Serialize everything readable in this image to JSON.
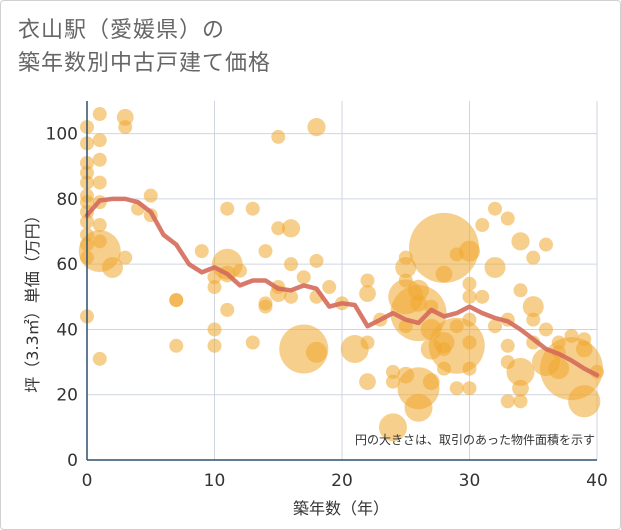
{
  "chart_data": {
    "type": "scatter",
    "title_line1": "衣山駅（愛媛県）の",
    "title_line2": "築年数別中古戸建て価格",
    "xlabel": "築年数（年）",
    "ylabel": "坪（3.3㎡）単価（万円）",
    "xlim": [
      0,
      40
    ],
    "ylim": [
      0,
      110
    ],
    "xticks": [
      0,
      10,
      20,
      30,
      40
    ],
    "yticks": [
      0,
      20,
      40,
      60,
      80,
      100
    ],
    "xtick_labels": [
      "0",
      "10",
      "20",
      "30",
      "40"
    ],
    "ytick_labels": [
      "0",
      "20",
      "40",
      "60",
      "80",
      "100"
    ],
    "note": "円の大きさは、取引のあった物件面積を示す",
    "colors": {
      "bubble": "#f0a830",
      "trend": "#d46a5a",
      "grid": "#cfd6e0",
      "axis": "#2f4f6f"
    },
    "scatter": [
      {
        "x": 0,
        "y": 102,
        "s": 1
      },
      {
        "x": 0,
        "y": 97,
        "s": 1
      },
      {
        "x": 0,
        "y": 91,
        "s": 1
      },
      {
        "x": 0,
        "y": 88,
        "s": 1
      },
      {
        "x": 0,
        "y": 85,
        "s": 1
      },
      {
        "x": 0,
        "y": 81,
        "s": 1
      },
      {
        "x": 0,
        "y": 79,
        "s": 1
      },
      {
        "x": 0,
        "y": 76,
        "s": 1
      },
      {
        "x": 0,
        "y": 73,
        "s": 1
      },
      {
        "x": 0,
        "y": 69,
        "s": 1
      },
      {
        "x": 0,
        "y": 66,
        "s": 1
      },
      {
        "x": 0,
        "y": 62,
        "s": 1
      },
      {
        "x": 0,
        "y": 44,
        "s": 1
      },
      {
        "x": 1,
        "y": 106,
        "s": 1
      },
      {
        "x": 1,
        "y": 98,
        "s": 1
      },
      {
        "x": 1,
        "y": 92,
        "s": 1
      },
      {
        "x": 1,
        "y": 85,
        "s": 1
      },
      {
        "x": 1,
        "y": 79,
        "s": 1
      },
      {
        "x": 1,
        "y": 72,
        "s": 1
      },
      {
        "x": 1,
        "y": 67,
        "s": 1
      },
      {
        "x": 1,
        "y": 64,
        "s": 3
      },
      {
        "x": 1,
        "y": 31,
        "s": 1
      },
      {
        "x": 2,
        "y": 59,
        "s": 1.5
      },
      {
        "x": 3,
        "y": 62,
        "s": 1
      },
      {
        "x": 3,
        "y": 102,
        "s": 1
      },
      {
        "x": 3,
        "y": 105,
        "s": 1.2
      },
      {
        "x": 4,
        "y": 77,
        "s": 1
      },
      {
        "x": 5,
        "y": 81,
        "s": 1
      },
      {
        "x": 5,
        "y": 75,
        "s": 1
      },
      {
        "x": 7,
        "y": 49,
        "s": 1
      },
      {
        "x": 7,
        "y": 49,
        "s": 1
      },
      {
        "x": 7,
        "y": 35,
        "s": 1
      },
      {
        "x": 9,
        "y": 64,
        "s": 1
      },
      {
        "x": 10,
        "y": 56,
        "s": 1
      },
      {
        "x": 10,
        "y": 53,
        "s": 1
      },
      {
        "x": 10,
        "y": 40,
        "s": 1
      },
      {
        "x": 10,
        "y": 35,
        "s": 1
      },
      {
        "x": 11,
        "y": 77,
        "s": 1
      },
      {
        "x": 11,
        "y": 60,
        "s": 2.2
      },
      {
        "x": 11,
        "y": 57,
        "s": 1.2
      },
      {
        "x": 11,
        "y": 46,
        "s": 1
      },
      {
        "x": 12,
        "y": 58,
        "s": 1
      },
      {
        "x": 13,
        "y": 77,
        "s": 1
      },
      {
        "x": 13,
        "y": 36,
        "s": 1
      },
      {
        "x": 14,
        "y": 64,
        "s": 1
      },
      {
        "x": 14,
        "y": 48,
        "s": 1
      },
      {
        "x": 14,
        "y": 47,
        "s": 1
      },
      {
        "x": 15,
        "y": 99,
        "s": 1
      },
      {
        "x": 15,
        "y": 71,
        "s": 1
      },
      {
        "x": 15,
        "y": 53,
        "s": 1
      },
      {
        "x": 15,
        "y": 51,
        "s": 1.2
      },
      {
        "x": 16,
        "y": 71,
        "s": 1.3
      },
      {
        "x": 16,
        "y": 60,
        "s": 1
      },
      {
        "x": 16,
        "y": 50,
        "s": 1
      },
      {
        "x": 17,
        "y": 56,
        "s": 1
      },
      {
        "x": 17,
        "y": 34,
        "s": 3.5
      },
      {
        "x": 18,
        "y": 102,
        "s": 1.3
      },
      {
        "x": 18,
        "y": 61,
        "s": 1
      },
      {
        "x": 18,
        "y": 50,
        "s": 1
      },
      {
        "x": 18,
        "y": 33,
        "s": 1.5
      },
      {
        "x": 19,
        "y": 53,
        "s": 1
      },
      {
        "x": 20,
        "y": 48,
        "s": 1
      },
      {
        "x": 21,
        "y": 34,
        "s": 2
      },
      {
        "x": 22,
        "y": 55,
        "s": 1
      },
      {
        "x": 22,
        "y": 51,
        "s": 1.2
      },
      {
        "x": 22,
        "y": 36,
        "s": 1
      },
      {
        "x": 22,
        "y": 24,
        "s": 1.2
      },
      {
        "x": 23,
        "y": 43,
        "s": 1
      },
      {
        "x": 24,
        "y": 27,
        "s": 1
      },
      {
        "x": 24,
        "y": 24,
        "s": 1
      },
      {
        "x": 24,
        "y": 10,
        "s": 2
      },
      {
        "x": 25,
        "y": 62,
        "s": 1
      },
      {
        "x": 25,
        "y": 59,
        "s": 1.5
      },
      {
        "x": 25,
        "y": 55,
        "s": 1
      },
      {
        "x": 25,
        "y": 50,
        "s": 2.5
      },
      {
        "x": 25,
        "y": 41,
        "s": 1
      },
      {
        "x": 25,
        "y": 26,
        "s": 1.2
      },
      {
        "x": 26,
        "y": 52,
        "s": 1.5
      },
      {
        "x": 26,
        "y": 48,
        "s": 1.2
      },
      {
        "x": 26,
        "y": 45,
        "s": 4
      },
      {
        "x": 26,
        "y": 22,
        "s": 3
      },
      {
        "x": 26,
        "y": 16,
        "s": 2
      },
      {
        "x": 27,
        "y": 47,
        "s": 1
      },
      {
        "x": 27,
        "y": 40,
        "s": 1.5
      },
      {
        "x": 27,
        "y": 34,
        "s": 1.5
      },
      {
        "x": 27,
        "y": 24,
        "s": 1.2
      },
      {
        "x": 28,
        "y": 65,
        "s": 5
      },
      {
        "x": 28,
        "y": 57,
        "s": 1.2
      },
      {
        "x": 28,
        "y": 36,
        "s": 1.5
      },
      {
        "x": 28,
        "y": 34,
        "s": 1
      },
      {
        "x": 28,
        "y": 28,
        "s": 1
      },
      {
        "x": 29,
        "y": 63,
        "s": 1
      },
      {
        "x": 29,
        "y": 41,
        "s": 1
      },
      {
        "x": 29,
        "y": 35,
        "s": 4
      },
      {
        "x": 29,
        "y": 22,
        "s": 1
      },
      {
        "x": 30,
        "y": 64,
        "s": 1.5
      },
      {
        "x": 30,
        "y": 54,
        "s": 1
      },
      {
        "x": 30,
        "y": 50,
        "s": 1
      },
      {
        "x": 30,
        "y": 43,
        "s": 1
      },
      {
        "x": 30,
        "y": 36,
        "s": 1
      },
      {
        "x": 30,
        "y": 28,
        "s": 1
      },
      {
        "x": 30,
        "y": 22,
        "s": 1
      },
      {
        "x": 31,
        "y": 72,
        "s": 1
      },
      {
        "x": 31,
        "y": 50,
        "s": 1
      },
      {
        "x": 32,
        "y": 77,
        "s": 1
      },
      {
        "x": 32,
        "y": 59,
        "s": 1.5
      },
      {
        "x": 32,
        "y": 41,
        "s": 1
      },
      {
        "x": 33,
        "y": 74,
        "s": 1
      },
      {
        "x": 33,
        "y": 43,
        "s": 1
      },
      {
        "x": 33,
        "y": 35,
        "s": 1
      },
      {
        "x": 33,
        "y": 30,
        "s": 1
      },
      {
        "x": 33,
        "y": 18,
        "s": 1
      },
      {
        "x": 34,
        "y": 67,
        "s": 1.3
      },
      {
        "x": 34,
        "y": 52,
        "s": 1
      },
      {
        "x": 34,
        "y": 27,
        "s": 2
      },
      {
        "x": 34,
        "y": 22,
        "s": 1.2
      },
      {
        "x": 34,
        "y": 18,
        "s": 1
      },
      {
        "x": 35,
        "y": 62,
        "s": 1
      },
      {
        "x": 35,
        "y": 47,
        "s": 1.5
      },
      {
        "x": 35,
        "y": 43,
        "s": 1
      },
      {
        "x": 35,
        "y": 36,
        "s": 1
      },
      {
        "x": 36,
        "y": 66,
        "s": 1
      },
      {
        "x": 36,
        "y": 40,
        "s": 1
      },
      {
        "x": 36,
        "y": 30,
        "s": 2
      },
      {
        "x": 37,
        "y": 36,
        "s": 1
      },
      {
        "x": 37,
        "y": 33,
        "s": 1
      },
      {
        "x": 37,
        "y": 28,
        "s": 1.5
      },
      {
        "x": 38,
        "y": 38,
        "s": 1
      },
      {
        "x": 38,
        "y": 28,
        "s": 4.5
      },
      {
        "x": 39,
        "y": 37,
        "s": 1
      },
      {
        "x": 39,
        "y": 34,
        "s": 1.2
      },
      {
        "x": 39,
        "y": 18,
        "s": 2.3
      },
      {
        "x": 40,
        "y": 27,
        "s": 1
      }
    ],
    "trend": [
      {
        "x": 0,
        "y": 75
      },
      {
        "x": 1,
        "y": 79.5
      },
      {
        "x": 2,
        "y": 80
      },
      {
        "x": 3,
        "y": 80
      },
      {
        "x": 4,
        "y": 79
      },
      {
        "x": 5,
        "y": 76
      },
      {
        "x": 6,
        "y": 69
      },
      {
        "x": 7,
        "y": 66
      },
      {
        "x": 8,
        "y": 60
      },
      {
        "x": 9,
        "y": 57.5
      },
      {
        "x": 10,
        "y": 59
      },
      {
        "x": 11,
        "y": 57
      },
      {
        "x": 12,
        "y": 53.5
      },
      {
        "x": 13,
        "y": 55
      },
      {
        "x": 14,
        "y": 55
      },
      {
        "x": 15,
        "y": 52.5
      },
      {
        "x": 16,
        "y": 52
      },
      {
        "x": 17,
        "y": 53.5
      },
      {
        "x": 18,
        "y": 52.5
      },
      {
        "x": 19,
        "y": 47
      },
      {
        "x": 20,
        "y": 48
      },
      {
        "x": 21,
        "y": 47.5
      },
      {
        "x": 22,
        "y": 41
      },
      {
        "x": 23,
        "y": 43
      },
      {
        "x": 24,
        "y": 45
      },
      {
        "x": 25,
        "y": 43
      },
      {
        "x": 26,
        "y": 42
      },
      {
        "x": 27,
        "y": 46
      },
      {
        "x": 28,
        "y": 44
      },
      {
        "x": 29,
        "y": 45
      },
      {
        "x": 30,
        "y": 47
      },
      {
        "x": 31,
        "y": 45
      },
      {
        "x": 32,
        "y": 43.5
      },
      {
        "x": 33,
        "y": 42.5
      },
      {
        "x": 34,
        "y": 40
      },
      {
        "x": 35,
        "y": 37
      },
      {
        "x": 36,
        "y": 34
      },
      {
        "x": 37,
        "y": 32.5
      },
      {
        "x": 38,
        "y": 30.5
      },
      {
        "x": 39,
        "y": 28
      },
      {
        "x": 40,
        "y": 26
      }
    ]
  }
}
